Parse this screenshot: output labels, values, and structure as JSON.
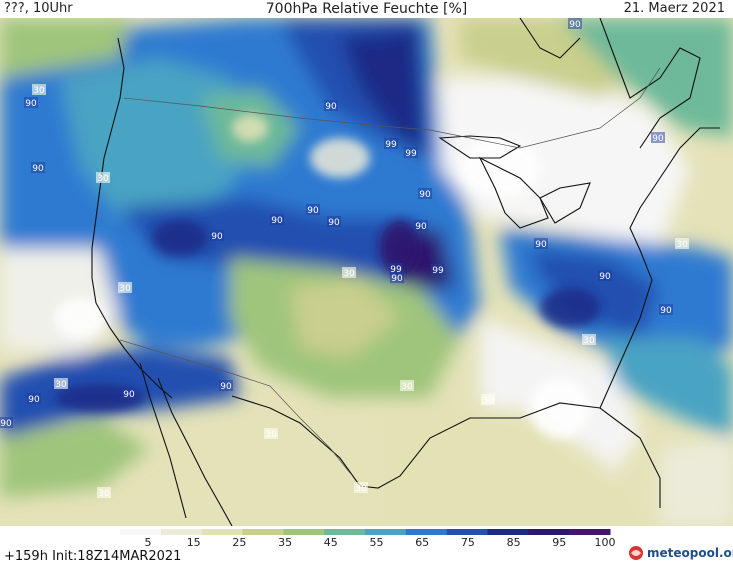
{
  "header": {
    "left": "???, 10Uhr",
    "title": "700hPa Relative Feuchte [%]",
    "date": "21. Maerz 2021"
  },
  "footer": {
    "run": "+159h Init:18Z14MAR2021",
    "logo": "meteopool.org"
  },
  "legend": {
    "ticks": [
      "5",
      "15",
      "25",
      "35",
      "45",
      "55",
      "65",
      "75",
      "85",
      "95",
      "100"
    ],
    "colors": [
      "#f8f8f8",
      "#ecebd9",
      "#e3e2b5",
      "#c9cf8c",
      "#9fc57b",
      "#6db99a",
      "#49a3c3",
      "#2f7ad1",
      "#2450b0",
      "#1c2b86",
      "#2e176e",
      "#441570"
    ]
  },
  "contour_labels": {
    "values": [
      "90",
      "90",
      "30",
      "30",
      "90",
      "99",
      "99",
      "90",
      "90",
      "90",
      "90",
      "90",
      "30",
      "90",
      "99",
      "99",
      "90",
      "30",
      "90",
      "30",
      "30",
      "90",
      "30",
      "90",
      "30",
      "90",
      "90",
      "30",
      "30",
      "30",
      "30",
      "90",
      "90",
      "90",
      "90"
    ]
  },
  "colors": {
    "land_outline": "#111111",
    "border": "#555555"
  }
}
